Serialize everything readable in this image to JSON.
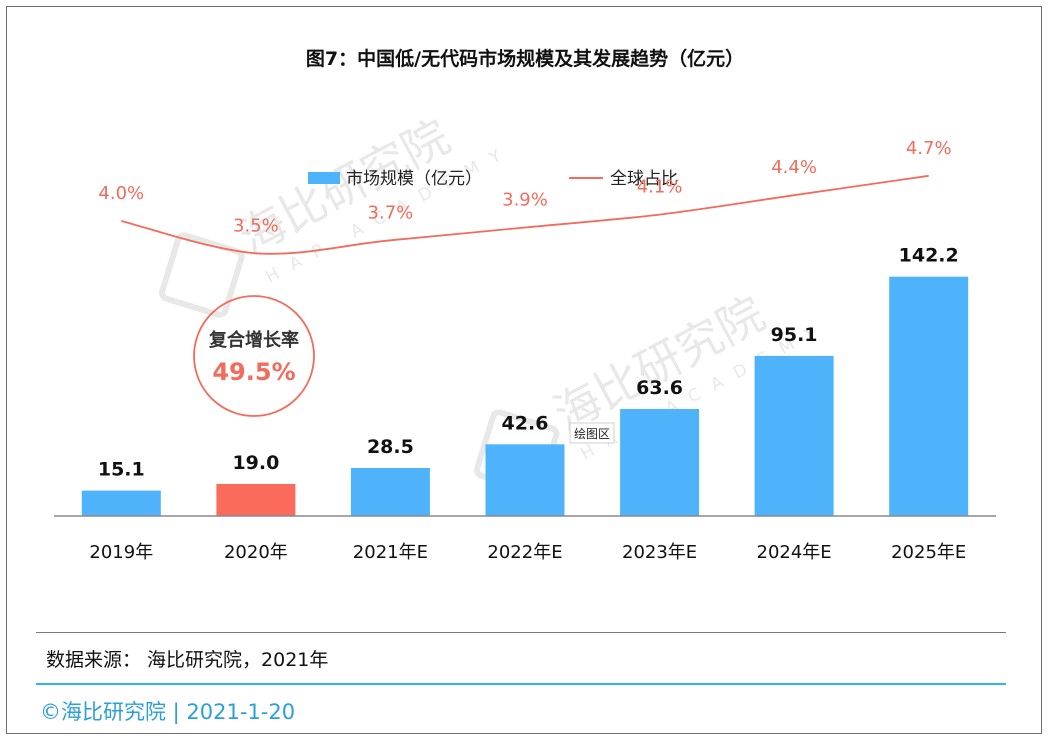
{
  "title": "图7：中国低/无代码市场规模及其发展趋势（亿元）",
  "chart_data": {
    "type": "bar",
    "categories": [
      "2019年",
      "2020年",
      "2021年E",
      "2022年E",
      "2023年E",
      "2024年E",
      "2025年E"
    ],
    "series": [
      {
        "name": "市场规模（亿元）",
        "type": "bar",
        "values": [
          15.1,
          19.0,
          28.5,
          42.6,
          63.6,
          95.1,
          142.2
        ],
        "value_labels": [
          "15.1",
          "19.0",
          "28.5",
          "42.6",
          "63.6",
          "95.1",
          "142.2"
        ],
        "color": "#4eb3fb",
        "highlight_color": "#fa6b5b",
        "highlight_index": 1
      },
      {
        "name": "全球占比",
        "type": "line",
        "values": [
          4.0,
          3.5,
          3.7,
          3.9,
          4.1,
          4.4,
          4.7
        ],
        "value_labels": [
          "4.0%",
          "3.5%",
          "3.7%",
          "3.9%",
          "4.1%",
          "4.4%",
          "4.7%"
        ],
        "color": "#f36b5b"
      }
    ],
    "legend_position": "top",
    "grid": false,
    "annotation": {
      "label": "复合增长率",
      "value": "49.5%"
    },
    "plot_area_label": "绘图区",
    "watermark": {
      "name": "海比研究院",
      "sub": "HAP ACADEMY"
    }
  },
  "source": "数据来源： 海比研究院，2021年",
  "footer": "©海比研究院 | 2021-1-20"
}
